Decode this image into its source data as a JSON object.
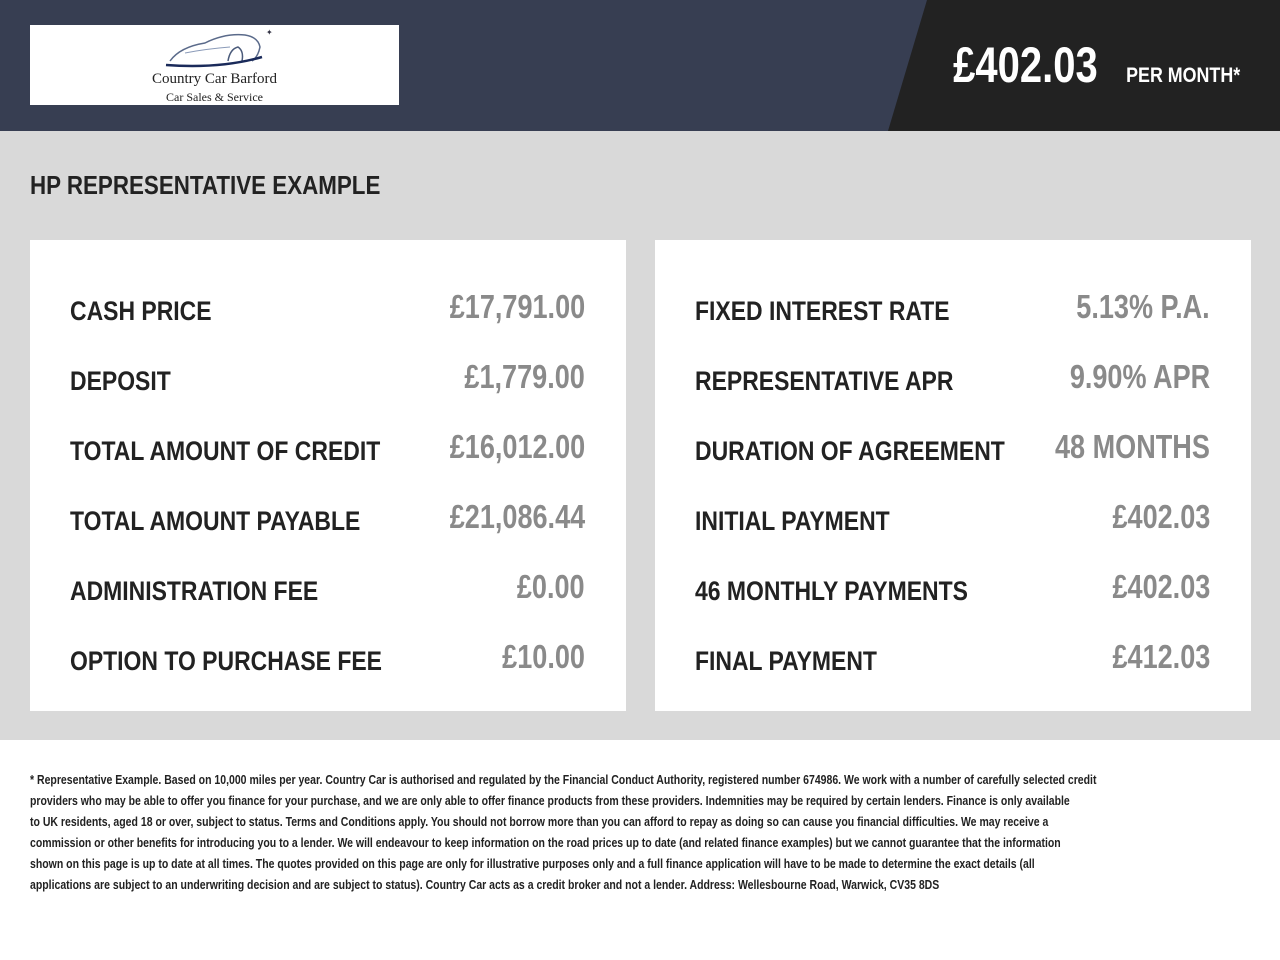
{
  "header": {
    "logo": {
      "name": "Country Car Barford",
      "tagline": "Car Sales & Service"
    },
    "monthly_amount": "£402.03",
    "monthly_label": "PER MONTH*"
  },
  "main": {
    "title": "HP REPRESENTATIVE EXAMPLE",
    "left": [
      {
        "label": "CASH PRICE",
        "value": "£17,791.00"
      },
      {
        "label": "DEPOSIT",
        "value": "£1,779.00"
      },
      {
        "label": "TOTAL AMOUNT OF CREDIT",
        "value": "£16,012.00"
      },
      {
        "label": "TOTAL AMOUNT PAYABLE",
        "value": "£21,086.44"
      },
      {
        "label": "ADMINISTRATION FEE",
        "value": "£0.00"
      },
      {
        "label": "OPTION TO PURCHASE FEE",
        "value": "£10.00"
      }
    ],
    "right": [
      {
        "label": "FIXED INTEREST RATE",
        "value": "5.13% P.A."
      },
      {
        "label": "REPRESENTATIVE APR",
        "value": "9.90% APR"
      },
      {
        "label": "DURATION OF AGREEMENT",
        "value": "48 MONTHS"
      },
      {
        "label": "INITIAL PAYMENT",
        "value": "£402.03"
      },
      {
        "label": "46 MONTHLY PAYMENTS",
        "value": "£402.03"
      },
      {
        "label": "FINAL PAYMENT",
        "value": "£412.03"
      }
    ]
  },
  "footnote": [
    "* Representative Example. Based on 10,000 miles per year. Country Car is authorised and regulated by the Financial Conduct Authority, registered number 674986. We work with a number of carefully selected credit",
    "providers who may be able to offer you finance for your purchase, and we are only able to offer finance products from these providers. Indemnities may be required by certain lenders. Finance is only available",
    "to UK residents, aged 18 or over, subject to status. Terms and Conditions apply. You should not borrow more than you can afford to repay as doing so can cause you financial difficulties. We may receive a",
    "commission or other benefits for introducing you to a lender. We will endeavour to keep information on the road prices up to date (and related finance examples) but we cannot guarantee that the information",
    "shown on this page is up to date at all times. The quotes provided on this page are only for illustrative purposes only and a full finance application will have to be made to determine the exact details (all",
    "applications are subject to an underwriting decision and are subject to status). Country Car acts as a credit broker and not a lender. Address: Wellesbourne Road, Warwick, CV35 8DS"
  ]
}
